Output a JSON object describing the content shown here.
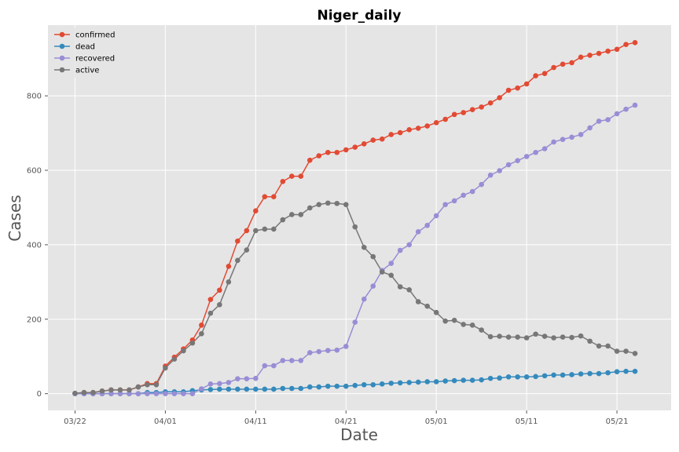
{
  "chart_data": {
    "type": "line",
    "title": "Niger_daily",
    "xlabel": "Date",
    "ylabel": "Cases",
    "x_range": [
      "2020-03-19",
      "2020-05-27"
    ],
    "ylim": [
      -45,
      990
    ],
    "x_ticks": [
      {
        "date": "2020-03-22",
        "label": "03/22"
      },
      {
        "date": "2020-04-01",
        "label": "04/01"
      },
      {
        "date": "2020-04-11",
        "label": "04/11"
      },
      {
        "date": "2020-04-21",
        "label": "04/21"
      },
      {
        "date": "2020-05-01",
        "label": "05/01"
      },
      {
        "date": "2020-05-11",
        "label": "05/11"
      },
      {
        "date": "2020-05-21",
        "label": "05/21"
      }
    ],
    "y_ticks": [
      0,
      200,
      400,
      600,
      800
    ],
    "grid": true,
    "legend_position": "top-left",
    "start_date": "2020-03-22",
    "series": [
      {
        "name": "confirmed",
        "color": "#E24A33",
        "values": [
          1,
          3,
          3,
          7,
          10,
          10,
          10,
          18,
          27,
          27,
          74,
          98,
          120,
          144,
          184,
          253,
          278,
          342,
          410,
          438,
          491,
          529,
          529,
          570,
          584,
          584,
          627,
          639,
          648,
          648,
          655,
          662,
          671,
          681,
          684,
          696,
          701,
          709,
          713,
          719,
          728,
          737,
          750,
          755,
          763,
          770,
          781,
          795,
          815,
          821,
          832,
          854,
          860,
          876,
          885,
          889,
          904,
          909,
          914,
          920,
          925,
          938,
          943
        ]
      },
      {
        "name": "dead",
        "color": "#348ABD",
        "values": [
          0,
          0,
          0,
          0,
          0,
          0,
          0,
          0,
          3,
          3,
          5,
          5,
          5,
          8,
          10,
          11,
          12,
          12,
          12,
          12,
          12,
          12,
          12,
          14,
          14,
          14,
          18,
          18,
          20,
          20,
          20,
          22,
          24,
          24,
          26,
          28,
          29,
          30,
          31,
          32,
          32,
          34,
          35,
          36,
          36,
          37,
          41,
          42,
          45,
          45,
          45,
          46,
          48,
          50,
          50,
          51,
          53,
          54,
          54,
          56,
          59,
          60,
          60
        ]
      },
      {
        "name": "recovered",
        "color": "#988ED5",
        "values": [
          0,
          0,
          0,
          0,
          0,
          0,
          0,
          0,
          0,
          0,
          0,
          0,
          0,
          0,
          13,
          26,
          27,
          30,
          40,
          40,
          41,
          75,
          75,
          89,
          89,
          89,
          110,
          113,
          116,
          117,
          127,
          192,
          254,
          289,
          331,
          350,
          385,
          400,
          435,
          452,
          478,
          508,
          518,
          533,
          543,
          562,
          587,
          599,
          615,
          626,
          637,
          648,
          658,
          676,
          683,
          689,
          696,
          714,
          732,
          736,
          752,
          764,
          775
        ]
      },
      {
        "name": "active",
        "color": "#777777",
        "values": [
          1,
          3,
          3,
          7,
          10,
          10,
          10,
          18,
          24,
          24,
          69,
          93,
          115,
          136,
          161,
          216,
          239,
          300,
          358,
          386,
          438,
          442,
          442,
          467,
          481,
          481,
          499,
          508,
          512,
          511,
          508,
          448,
          393,
          368,
          327,
          318,
          287,
          279,
          247,
          235,
          218,
          195,
          197,
          186,
          184,
          171,
          153,
          154,
          152,
          152,
          150,
          160,
          154,
          150,
          152,
          151,
          155,
          141,
          128,
          128,
          114,
          114,
          108
        ]
      }
    ]
  }
}
